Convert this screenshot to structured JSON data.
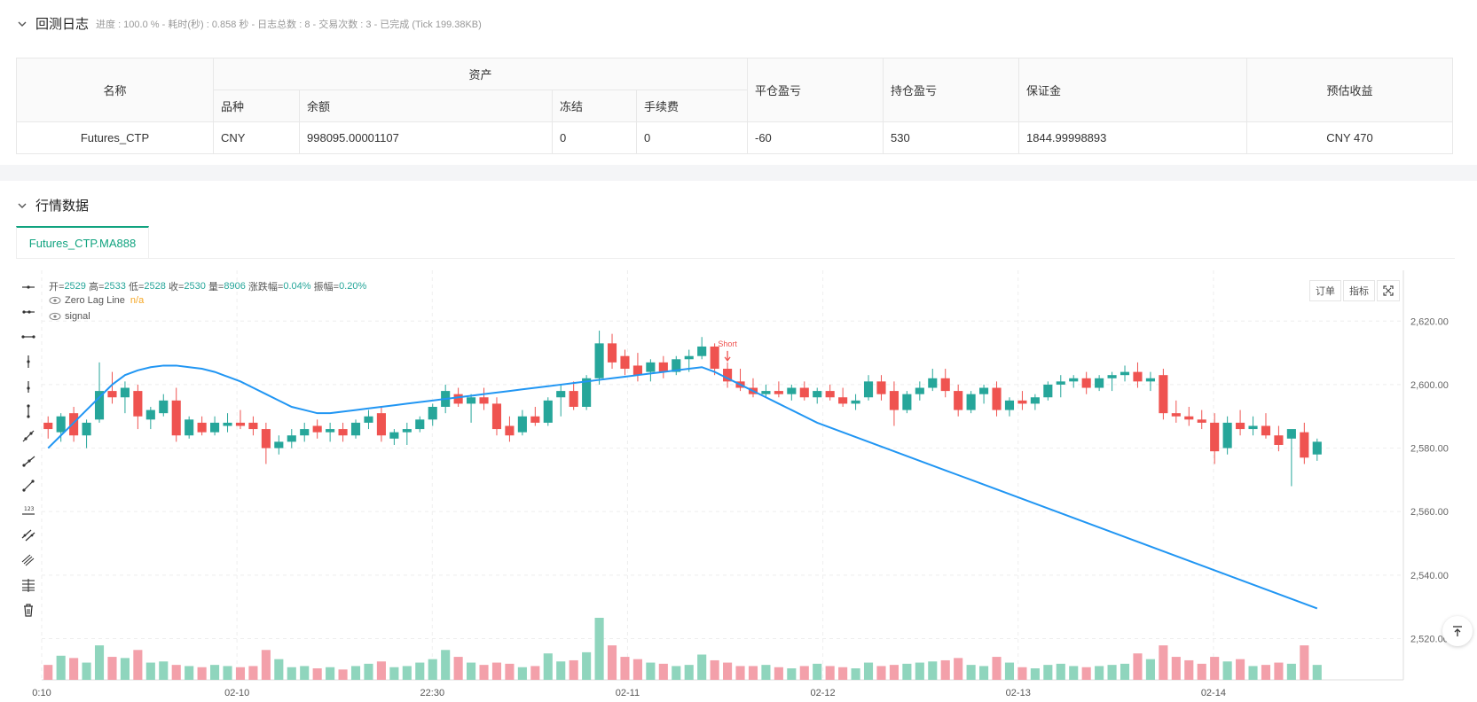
{
  "log": {
    "title": "回测日志",
    "status": "进度 : 100.0 % - 耗时(秒) : 0.858  秒 - 日志总数 : 8 - 交易次数 : 3 - 已完成 (Tick 199.38KB)"
  },
  "assets_table": {
    "headers": {
      "name": "名称",
      "assets": "资产",
      "variety": "品种",
      "balance": "余额",
      "frozen": "冻结",
      "fee": "手续费",
      "close_pnl": "平仓盈亏",
      "hold_pnl": "持仓盈亏",
      "margin": "保证金",
      "est_profit": "预估收益"
    },
    "row": {
      "name": "Futures_CTP",
      "variety": "CNY",
      "balance": "998095.00001107",
      "frozen": "0",
      "fee": "0",
      "close_pnl": "-60",
      "hold_pnl": "530",
      "margin": "1844.99998893",
      "est_profit": "CNY 470"
    }
  },
  "market": {
    "title": "行情数据",
    "tab": "Futures_CTP.MA888",
    "buttons": {
      "order": "订单",
      "indicator": "指标"
    },
    "legend": {
      "ohlc": {
        "open_label": "开=",
        "open": "2529",
        "high_label": "高=",
        "high": "2533",
        "low_label": "低=",
        "low": "2528",
        "close_label": "收=",
        "close": "2530",
        "vol_label": "量=",
        "vol": "8906",
        "chg_label": "涨跌幅=",
        "chg": "0.04%",
        "amp_label": "振幅=",
        "amp": "0.20%"
      },
      "zero_lag_label": "Zero Lag Line",
      "zero_lag_value": "n/a",
      "signal_label": "signal"
    },
    "tools": [
      "horizontal-line-icon",
      "horizontal-ray-icon",
      "extended-line-icon",
      "vertical-line-icon",
      "vertical-segment-icon",
      "vertical-ray-icon",
      "trend-line-icon",
      "ray-icon",
      "segment-icon",
      "price-label-icon",
      "parallel-channel-icon",
      "pitchfork-icon",
      "fib-levels-icon",
      "trash-icon"
    ]
  },
  "chart_data": {
    "type": "candlestick",
    "title": "Futures_CTP.MA888",
    "x_tick_labels": [
      "0:10",
      "02-10",
      "22:30",
      "02-11",
      "02-12",
      "02-13",
      "02-14"
    ],
    "y_tick_labels": [
      "2,620.00",
      "2,600.00",
      "2,580.00",
      "2,560.00",
      "2,540.00",
      "2,520.00"
    ],
    "ylim": [
      2507,
      2636
    ],
    "colors": {
      "up": "#26a69a",
      "down": "#ef5350",
      "line": "#2196f3"
    },
    "signal_annotation": {
      "text": "Short",
      "bar_index": 53
    },
    "candles": [
      [
        2588,
        2590,
        2583,
        2586,
        130
      ],
      [
        2585,
        2591,
        2582,
        2590,
        210
      ],
      [
        2591,
        2593,
        2582,
        2584,
        190
      ],
      [
        2584,
        2589,
        2580,
        2588,
        150
      ],
      [
        2589,
        2607,
        2588,
        2598,
        300
      ],
      [
        2598,
        2604,
        2594,
        2596,
        200
      ],
      [
        2596,
        2601,
        2591,
        2599,
        190
      ],
      [
        2598,
        2600,
        2586,
        2590,
        260
      ],
      [
        2589,
        2593,
        2586,
        2592,
        150
      ],
      [
        2591,
        2597,
        2590,
        2595,
        160
      ],
      [
        2595,
        2599,
        2582,
        2584,
        130
      ],
      [
        2584,
        2590,
        2583,
        2589,
        120
      ],
      [
        2588,
        2590,
        2584,
        2585,
        110
      ],
      [
        2585,
        2590,
        2584,
        2588,
        130
      ],
      [
        2587,
        2591,
        2585,
        2588,
        120
      ],
      [
        2588,
        2592,
        2586,
        2587,
        110
      ],
      [
        2588,
        2590,
        2584,
        2586,
        120
      ],
      [
        2586,
        2588,
        2575,
        2580,
        260
      ],
      [
        2580,
        2584,
        2578,
        2582,
        180
      ],
      [
        2582,
        2586,
        2580,
        2584,
        110
      ],
      [
        2584,
        2588,
        2582,
        2586,
        120
      ],
      [
        2587,
        2589,
        2583,
        2585,
        100
      ],
      [
        2585,
        2588,
        2582,
        2586,
        110
      ],
      [
        2586,
        2588,
        2582,
        2584,
        90
      ],
      [
        2584,
        2589,
        2583,
        2588,
        120
      ],
      [
        2588,
        2592,
        2586,
        2590,
        140
      ],
      [
        2591,
        2593,
        2582,
        2584,
        160
      ],
      [
        2583,
        2586,
        2581,
        2585,
        110
      ],
      [
        2585,
        2588,
        2581,
        2586,
        120
      ],
      [
        2586,
        2590,
        2585,
        2589,
        150
      ],
      [
        2589,
        2594,
        2587,
        2593,
        180
      ],
      [
        2593,
        2600,
        2591,
        2598,
        260
      ],
      [
        2597,
        2599,
        2593,
        2594,
        200
      ],
      [
        2594,
        2597,
        2588,
        2596,
        150
      ],
      [
        2596,
        2599,
        2592,
        2594,
        130
      ],
      [
        2594,
        2596,
        2584,
        2586,
        150
      ],
      [
        2587,
        2590,
        2582,
        2584,
        140
      ],
      [
        2585,
        2592,
        2584,
        2590,
        110
      ],
      [
        2590,
        2593,
        2587,
        2588,
        120
      ],
      [
        2588,
        2596,
        2587,
        2595,
        230
      ],
      [
        2596,
        2600,
        2590,
        2598,
        160
      ],
      [
        2598,
        2601,
        2592,
        2593,
        170
      ],
      [
        2593,
        2603,
        2592,
        2602,
        240
      ],
      [
        2602,
        2617,
        2600,
        2613,
        540
      ],
      [
        2613,
        2616,
        2605,
        2607,
        300
      ],
      [
        2609,
        2611,
        2603,
        2605,
        200
      ],
      [
        2606,
        2610,
        2601,
        2603,
        180
      ],
      [
        2604,
        2608,
        2601,
        2607,
        150
      ],
      [
        2607,
        2609,
        2602,
        2604,
        140
      ],
      [
        2604,
        2609,
        2603,
        2608,
        120
      ],
      [
        2608,
        2611,
        2604,
        2609,
        130
      ],
      [
        2609,
        2615,
        2608,
        2612,
        220
      ],
      [
        2612,
        2613,
        2603,
        2605,
        170
      ],
      [
        2605,
        2607,
        2599,
        2601,
        150
      ],
      [
        2601,
        2605,
        2598,
        2599,
        120
      ],
      [
        2599,
        2602,
        2596,
        2597,
        120
      ],
      [
        2597,
        2600,
        2596,
        2598,
        130
      ],
      [
        2598,
        2601,
        2596,
        2597,
        110
      ],
      [
        2597,
        2600,
        2595,
        2599,
        100
      ],
      [
        2599,
        2601,
        2595,
        2596,
        120
      ],
      [
        2596,
        2599,
        2594,
        2598,
        140
      ],
      [
        2598,
        2600,
        2595,
        2596,
        120
      ],
      [
        2596,
        2599,
        2593,
        2594,
        110
      ],
      [
        2594,
        2597,
        2592,
        2595,
        100
      ],
      [
        2596,
        2603,
        2595,
        2601,
        150
      ],
      [
        2601,
        2603,
        2595,
        2597,
        120
      ],
      [
        2598,
        2601,
        2587,
        2592,
        130
      ],
      [
        2592,
        2598,
        2591,
        2597,
        140
      ],
      [
        2597,
        2601,
        2595,
        2599,
        150
      ],
      [
        2599,
        2605,
        2598,
        2602,
        160
      ],
      [
        2602,
        2605,
        2596,
        2598,
        170
      ],
      [
        2598,
        2600,
        2590,
        2592,
        190
      ],
      [
        2592,
        2598,
        2591,
        2597,
        130
      ],
      [
        2597,
        2600,
        2594,
        2599,
        120
      ],
      [
        2599,
        2601,
        2590,
        2592,
        200
      ],
      [
        2592,
        2596,
        2590,
        2595,
        150
      ],
      [
        2595,
        2598,
        2592,
        2594,
        110
      ],
      [
        2594,
        2597,
        2592,
        2596,
        100
      ],
      [
        2596,
        2601,
        2595,
        2600,
        130
      ],
      [
        2600,
        2603,
        2596,
        2601,
        140
      ],
      [
        2601,
        2603,
        2599,
        2602,
        120
      ],
      [
        2602,
        2604,
        2597,
        2599,
        110
      ],
      [
        2599,
        2603,
        2598,
        2602,
        120
      ],
      [
        2602,
        2604,
        2598,
        2603,
        130
      ],
      [
        2603,
        2606,
        2601,
        2604,
        140
      ],
      [
        2604,
        2607,
        2599,
        2601,
        230
      ],
      [
        2601,
        2604,
        2598,
        2602,
        180
      ],
      [
        2603,
        2605,
        2589,
        2591,
        300
      ],
      [
        2591,
        2595,
        2588,
        2590,
        200
      ],
      [
        2590,
        2593,
        2587,
        2589,
        170
      ],
      [
        2589,
        2592,
        2586,
        2588,
        140
      ],
      [
        2588,
        2591,
        2575,
        2579,
        200
      ],
      [
        2580,
        2590,
        2578,
        2588,
        160
      ],
      [
        2588,
        2592,
        2584,
        2586,
        180
      ],
      [
        2586,
        2590,
        2584,
        2587,
        120
      ],
      [
        2587,
        2591,
        2583,
        2584,
        130
      ],
      [
        2584,
        2587,
        2579,
        2581,
        150
      ],
      [
        2583,
        2585,
        2568,
        2586,
        140
      ],
      [
        2585,
        2588,
        2575,
        2577,
        300
      ],
      [
        2578,
        2583,
        2576,
        2582,
        130
      ]
    ],
    "zero_lag_line": [
      2580,
      2584,
      2588,
      2592,
      2596,
      2600,
      2603,
      2604.5,
      2605.5,
      2606,
      2606,
      2605.5,
      2605,
      2604,
      2602.5,
      2601,
      2599,
      2597,
      2595,
      2593,
      2592,
      2591,
      2591,
      2591.5,
      2592,
      2592.5,
      2593,
      2593.5,
      2594,
      2594.5,
      2595,
      2595.5,
      2596,
      2596.5,
      2597,
      2597.5,
      2598,
      2598.5,
      2599,
      2599.5,
      2600,
      2600.5,
      2601,
      2601.5,
      2602,
      2602.5,
      2603,
      2603.5,
      2604,
      2604.5,
      2605,
      2605.5,
      2604,
      2602,
      2600,
      2598,
      2596,
      2594,
      2592,
      2590,
      2588,
      2586.5,
      2585,
      2583.5,
      2582,
      2580.5,
      2579,
      2577.5,
      2576,
      2574.5,
      2573,
      2571.5,
      2570,
      2568.5,
      2567,
      2565.5,
      2564,
      2562.5,
      2561,
      2559.5,
      2558,
      2556.5,
      2555,
      2553.5,
      2552,
      2550.5,
      2549,
      2547.5,
      2546,
      2544.5,
      2543,
      2541.5,
      2540,
      2538.5,
      2537,
      2535.5,
      2534,
      2532.5,
      2531,
      2529.5
    ]
  }
}
